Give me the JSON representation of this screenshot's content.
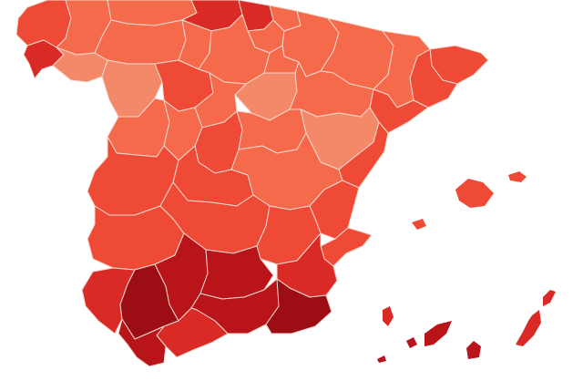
{
  "map": {
    "palette": {
      "border": "#f6d9cf",
      "light": "#f4896a",
      "medium_light": "#f46a4b",
      "medium": "#ee4a36",
      "medium_dark": "#d92a25",
      "dark": "#b8141a",
      "darkest": "#9c0d14"
    },
    "regions": [
      {
        "id": "a-coruna",
        "shade": "medium"
      },
      {
        "id": "pontevedra",
        "shade": "medium_dark"
      },
      {
        "id": "lugo",
        "shade": "medium_light"
      },
      {
        "id": "ourense",
        "shade": "light"
      },
      {
        "id": "asturias",
        "shade": "medium_light"
      },
      {
        "id": "cantabria",
        "shade": "medium_dark"
      },
      {
        "id": "bizkaia",
        "shade": "medium_dark"
      },
      {
        "id": "gipuzkoa",
        "shade": "medium_light"
      },
      {
        "id": "araba",
        "shade": "medium_light"
      },
      {
        "id": "navarra",
        "shade": "medium_light"
      },
      {
        "id": "huesca",
        "shade": "medium_light"
      },
      {
        "id": "girona",
        "shade": "medium"
      },
      {
        "id": "barcelona",
        "shade": "medium"
      },
      {
        "id": "lleida",
        "shade": "medium_light"
      },
      {
        "id": "tarragona",
        "shade": "medium"
      },
      {
        "id": "leon",
        "shade": "medium_light"
      },
      {
        "id": "palencia",
        "shade": "medium_light"
      },
      {
        "id": "burgos",
        "shade": "medium_light"
      },
      {
        "id": "la-rioja",
        "shade": "medium_light"
      },
      {
        "id": "soria",
        "shade": "light"
      },
      {
        "id": "zaragoza",
        "shade": "medium_light"
      },
      {
        "id": "zamora",
        "shade": "light"
      },
      {
        "id": "valladolid",
        "shade": "medium"
      },
      {
        "id": "segovia",
        "shade": "medium_light"
      },
      {
        "id": "salamanca",
        "shade": "medium_light"
      },
      {
        "id": "avila",
        "shade": "medium_light"
      },
      {
        "id": "madrid",
        "shade": "medium"
      },
      {
        "id": "guadalajara",
        "shade": "medium_light"
      },
      {
        "id": "teruel",
        "shade": "light"
      },
      {
        "id": "castellon",
        "shade": "medium"
      },
      {
        "id": "caceres",
        "shade": "medium"
      },
      {
        "id": "toledo",
        "shade": "medium"
      },
      {
        "id": "cuenca",
        "shade": "medium_light"
      },
      {
        "id": "valencia",
        "shade": "medium"
      },
      {
        "id": "badajoz",
        "shade": "medium"
      },
      {
        "id": "ciudad-real",
        "shade": "medium"
      },
      {
        "id": "albacete",
        "shade": "medium"
      },
      {
        "id": "alicante",
        "shade": "medium"
      },
      {
        "id": "murcia",
        "shade": "medium_dark"
      },
      {
        "id": "huelva",
        "shade": "medium_dark"
      },
      {
        "id": "sevilla",
        "shade": "darkest"
      },
      {
        "id": "cordoba",
        "shade": "dark"
      },
      {
        "id": "jaen",
        "shade": "dark"
      },
      {
        "id": "granada",
        "shade": "dark"
      },
      {
        "id": "almeria",
        "shade": "darkest"
      },
      {
        "id": "malaga",
        "shade": "medium_dark"
      },
      {
        "id": "cadiz",
        "shade": "dark"
      },
      {
        "id": "mallorca",
        "shade": "medium"
      },
      {
        "id": "menorca",
        "shade": "medium"
      },
      {
        "id": "ibiza",
        "shade": "medium"
      },
      {
        "id": "la-palma",
        "shade": "medium_dark"
      },
      {
        "id": "tenerife",
        "shade": "dark"
      },
      {
        "id": "gran-canaria",
        "shade": "dark"
      },
      {
        "id": "fuerteventura",
        "shade": "medium_dark"
      },
      {
        "id": "lanzarote",
        "shade": "medium_dark"
      },
      {
        "id": "la-gomera",
        "shade": "dark"
      },
      {
        "id": "el-hierro",
        "shade": "dark"
      }
    ]
  }
}
